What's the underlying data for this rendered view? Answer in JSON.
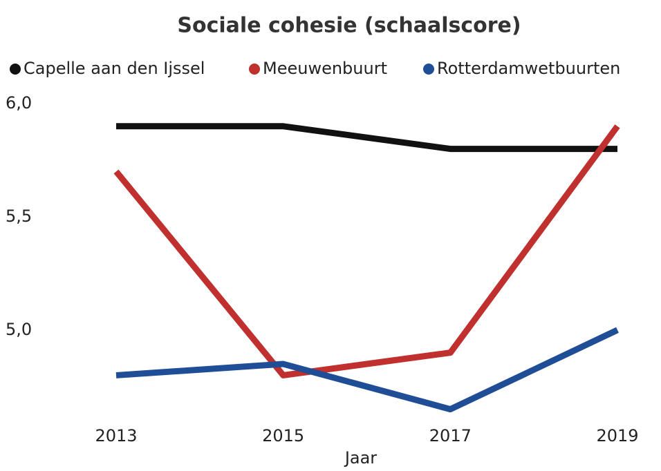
{
  "chart_data": {
    "type": "line",
    "title": "Sociale cohesie (schaalscore)",
    "xlabel": "Jaar",
    "categories": [
      "2013",
      "2015",
      "2017",
      "2019"
    ],
    "series": [
      {
        "name": "Capelle aan den Ijssel",
        "color": "#111111",
        "values": [
          5.9,
          5.9,
          5.8,
          5.8
        ]
      },
      {
        "name": "Meeuwenbuurt",
        "color": "#c0302e",
        "values": [
          5.7,
          4.8,
          4.9,
          5.9
        ]
      },
      {
        "name": "Rotterdamwetbuurten",
        "color": "#1f4e96",
        "values": [
          4.8,
          4.85,
          4.65,
          5.0
        ]
      }
    ],
    "ylim": [
      4.6,
      6.0
    ],
    "yticks": [
      {
        "value": 5.0,
        "label": "5,0"
      },
      {
        "value": 5.5,
        "label": "5,5"
      },
      {
        "value": 6.0,
        "label": "6,0"
      }
    ],
    "legend": "top",
    "grid": false
  }
}
